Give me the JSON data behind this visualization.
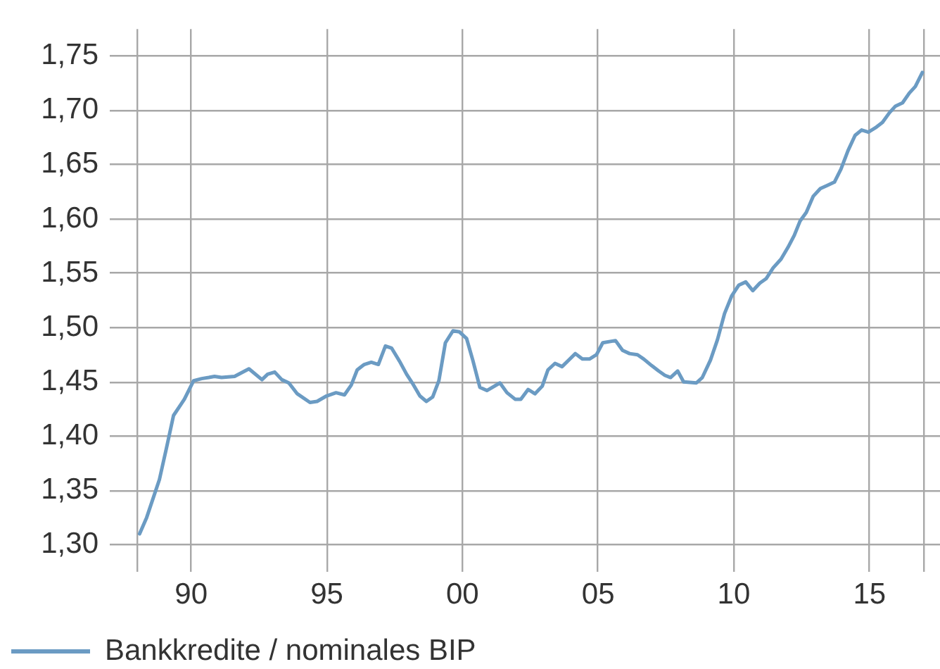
{
  "chart_data": {
    "type": "line",
    "x": [
      1988.1,
      1988.36,
      1988.83,
      1989.09,
      1989.35,
      1989.75,
      1990.09,
      1990.39,
      1990.65,
      1990.86,
      1991.12,
      1991.6,
      1992.13,
      1992.61,
      1992.82,
      1993.08,
      1993.34,
      1993.6,
      1993.91,
      1994.38,
      1994.64,
      1994.99,
      1995.34,
      1995.65,
      1995.9,
      1996.12,
      1996.38,
      1996.64,
      1996.9,
      1997.16,
      1997.39,
      1997.68,
      1997.94,
      1998.15,
      1998.43,
      1998.67,
      1998.9,
      1999.13,
      1999.37,
      1999.65,
      1999.89,
      2000.15,
      2000.38,
      2000.64,
      2000.9,
      2001.38,
      2001.64,
      2001.94,
      2002.15,
      2002.42,
      2002.67,
      2002.94,
      2003.15,
      2003.41,
      2003.67,
      2004.16,
      2004.42,
      2004.68,
      2004.94,
      2005.17,
      2005.64,
      2005.9,
      2006.16,
      2006.45,
      2006.68,
      2006.97,
      2007.23,
      2007.46,
      2007.67,
      2007.93,
      2008.15,
      2008.62,
      2008.84,
      2009.14,
      2009.4,
      2009.66,
      2009.92,
      2010.18,
      2010.44,
      2010.7,
      2010.96,
      2011.19,
      2011.45,
      2011.74,
      2012.0,
      2012.23,
      2012.44,
      2012.67,
      2012.93,
      2013.19,
      2013.45,
      2013.71,
      2013.95,
      2014.21,
      2014.47,
      2014.71,
      2014.96,
      2015.22,
      2015.48,
      2015.74,
      2015.96,
      2016.22,
      2016.47,
      2016.69,
      2016.95
    ],
    "series": [
      {
        "name": "Bankkredite / nominales BIP",
        "color": "#6b9bc3",
        "values": [
          1.31,
          1.325,
          1.36,
          1.389,
          1.419,
          1.434,
          1.451,
          1.453,
          1.454,
          1.455,
          1.454,
          1.455,
          1.462,
          1.452,
          1.457,
          1.459,
          1.452,
          1.449,
          1.439,
          1.431,
          1.432,
          1.437,
          1.44,
          1.438,
          1.447,
          1.461,
          1.466,
          1.468,
          1.466,
          1.483,
          1.481,
          1.469,
          1.457,
          1.449,
          1.437,
          1.432,
          1.436,
          1.451,
          1.486,
          1.497,
          1.496,
          1.49,
          1.47,
          1.445,
          1.442,
          1.449,
          1.44,
          1.434,
          1.434,
          1.443,
          1.439,
          1.446,
          1.461,
          1.467,
          1.464,
          1.476,
          1.471,
          1.471,
          1.475,
          1.486,
          1.488,
          1.479,
          1.476,
          1.475,
          1.471,
          1.465,
          1.46,
          1.456,
          1.454,
          1.46,
          1.45,
          1.449,
          1.454,
          1.47,
          1.489,
          1.513,
          1.529,
          1.539,
          1.542,
          1.534,
          1.541,
          1.545,
          1.555,
          1.563,
          1.574,
          1.585,
          1.598,
          1.606,
          1.621,
          1.628,
          1.631,
          1.634,
          1.646,
          1.663,
          1.677,
          1.682,
          1.68,
          1.684,
          1.689,
          1.698,
          1.704,
          1.707,
          1.716,
          1.722,
          1.735
        ]
      }
    ],
    "xlim": [
      1987,
      2017.6
    ],
    "xticks": [
      {
        "value": 1988,
        "label": null
      },
      {
        "value": 1990,
        "label": "90"
      },
      {
        "value": 1995,
        "label": "95"
      },
      {
        "value": 2000,
        "label": "00"
      },
      {
        "value": 2005,
        "label": "05"
      },
      {
        "value": 2010,
        "label": "10"
      },
      {
        "value": 2015,
        "label": "15"
      },
      {
        "value": 2017,
        "label": null
      }
    ],
    "ylim": [
      1.275,
      1.775
    ],
    "yticks": [
      {
        "value": 1.3,
        "label": "1,30"
      },
      {
        "value": 1.35,
        "label": "1,35"
      },
      {
        "value": 1.4,
        "label": "1,40"
      },
      {
        "value": 1.45,
        "label": "1,45"
      },
      {
        "value": 1.5,
        "label": "1,50"
      },
      {
        "value": 1.55,
        "label": "1,55"
      },
      {
        "value": 1.6,
        "label": "1,60"
      },
      {
        "value": 1.65,
        "label": "1,65"
      },
      {
        "value": 1.7,
        "label": "1,70"
      },
      {
        "value": 1.75,
        "label": "1,75"
      }
    ],
    "grid": true,
    "legend": "bottom left",
    "line_style": "solid"
  }
}
